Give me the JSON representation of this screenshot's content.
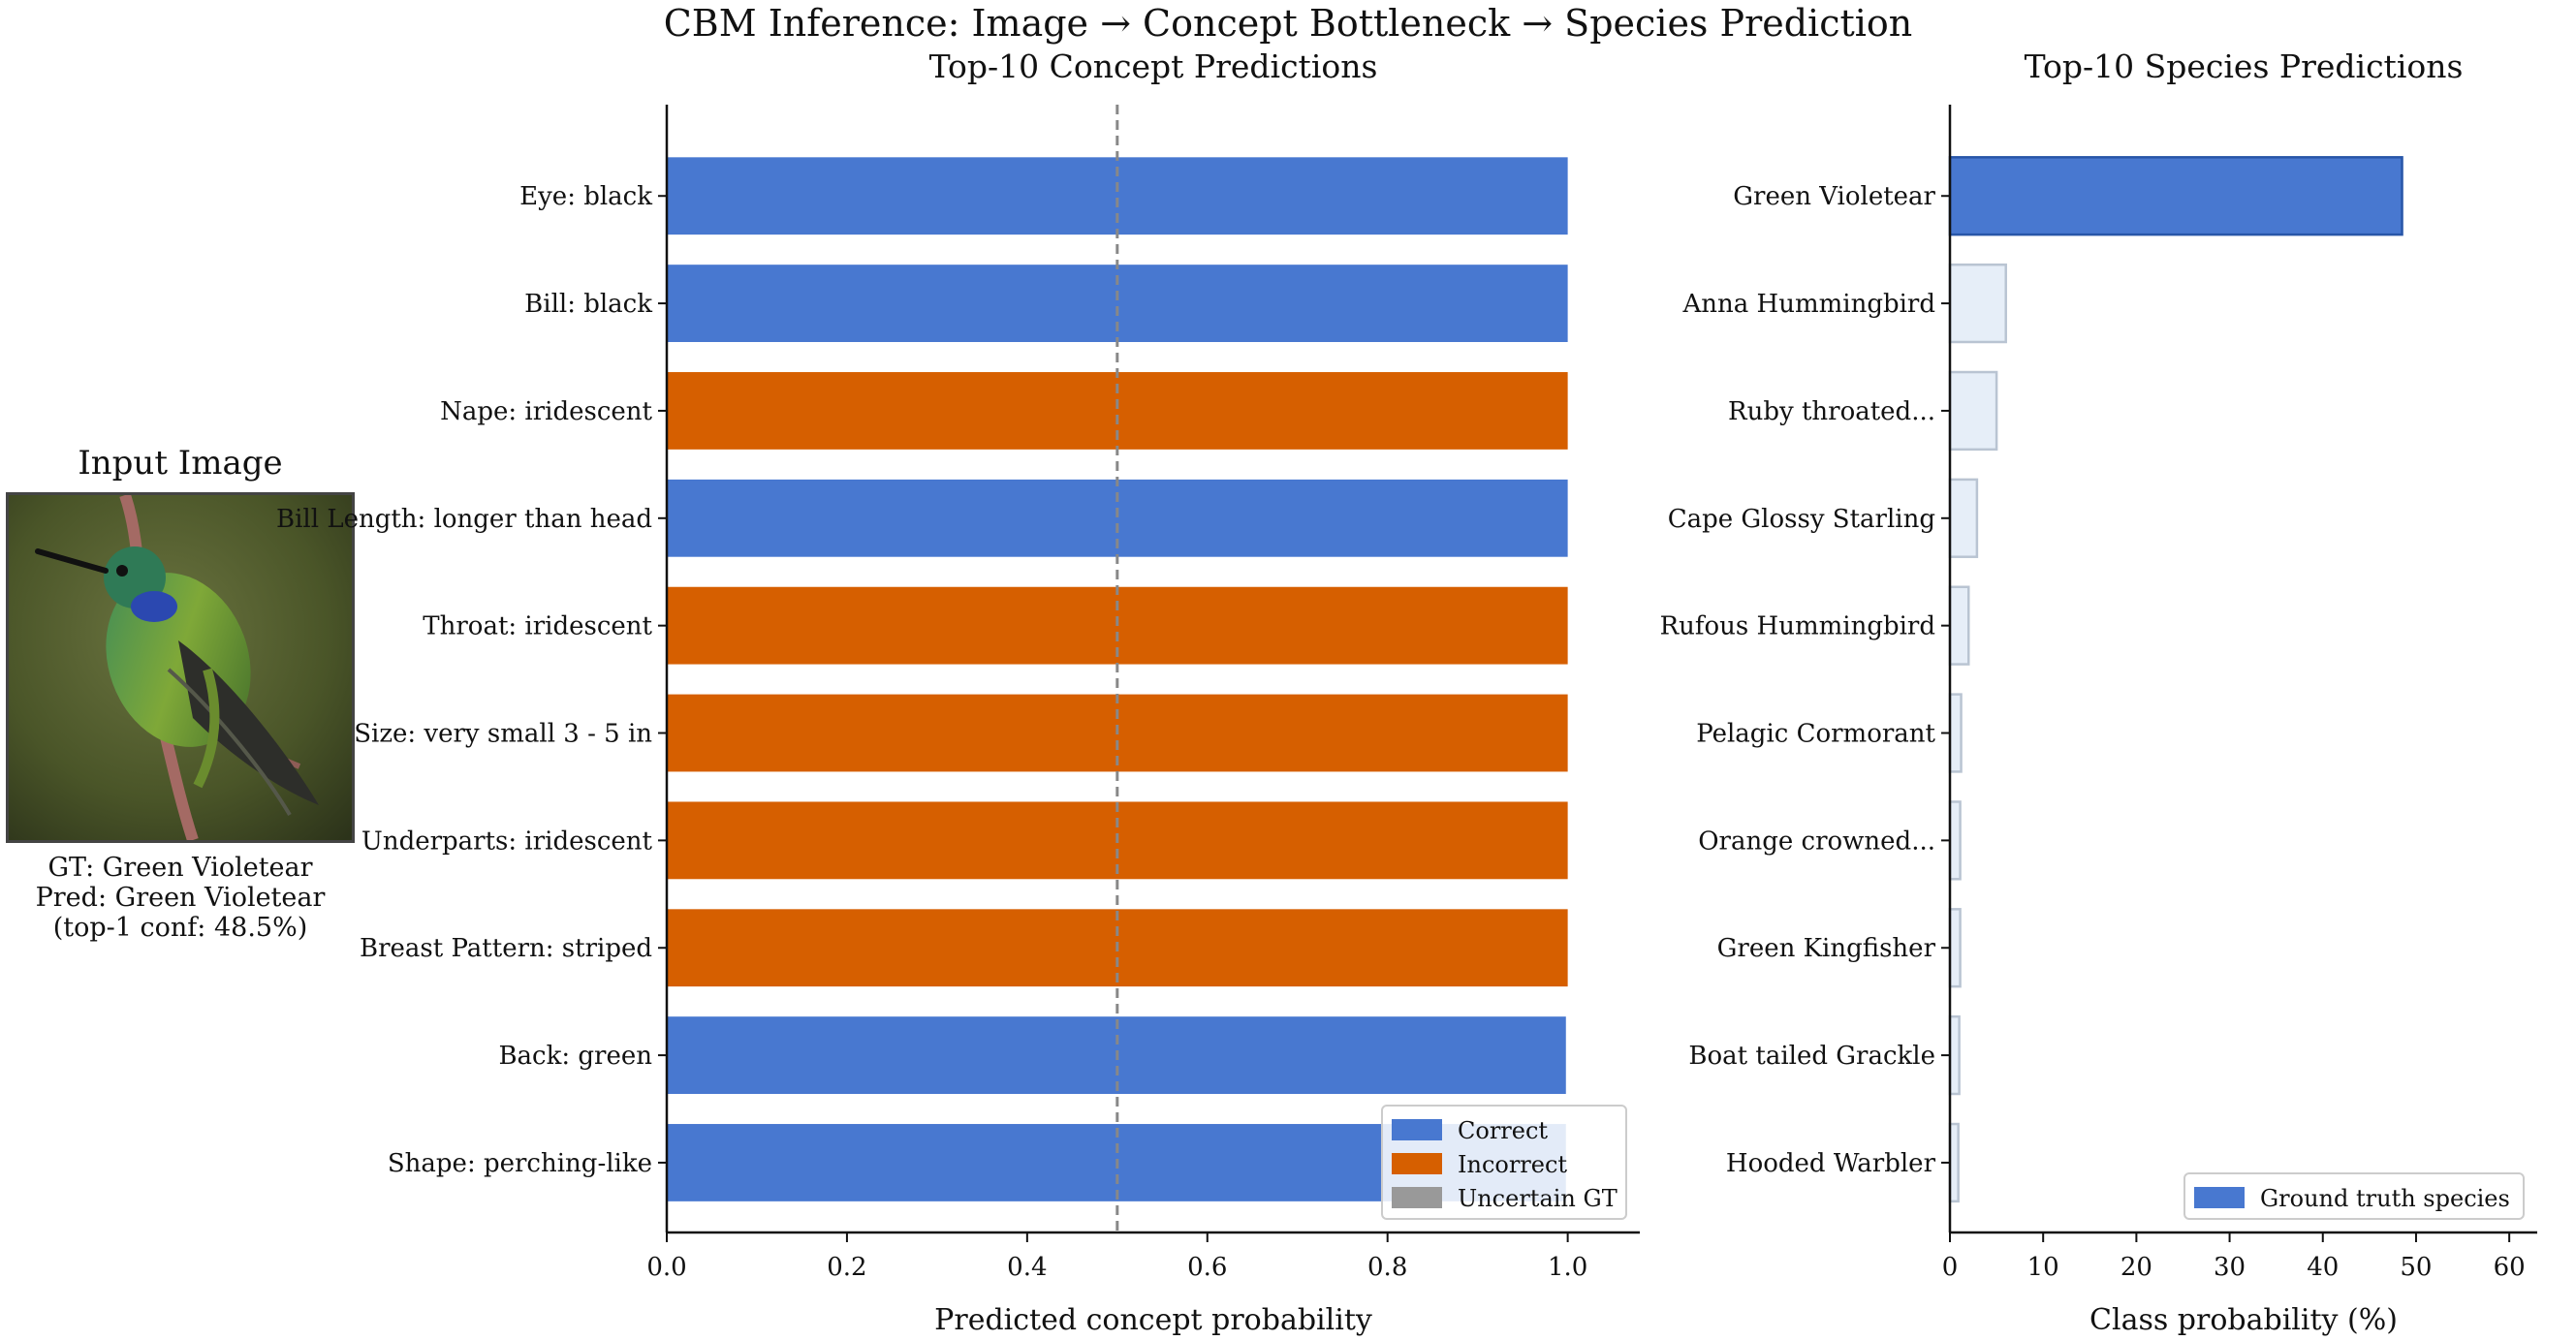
{
  "suptitle": "CBM Inference: Image → Concept Bottleneck → Species Prediction",
  "input_panel": {
    "title": "Input Image",
    "image_alt": "hummingbird-photo",
    "caption_gt": "GT: Green Violetear",
    "caption_pred": "Pred: Green Violetear",
    "caption_conf": "(top-1 conf: 48.5%)"
  },
  "colors": {
    "correct": "#4878D0",
    "incorrect": "#D65F00",
    "uncertain": "#999999",
    "species_other": "#E6EEF8",
    "species_other_edge": "#B9C4D2",
    "species_gt_edge": "#2856A8",
    "threshold": "#888888"
  },
  "chart_data": [
    {
      "type": "bar",
      "orientation": "horizontal",
      "title": "Top-10 Concept Predictions",
      "xlabel": "Predicted concept probability",
      "ylabel": "",
      "xlim": [
        0.0,
        1.08
      ],
      "xticks": [
        "0.0",
        "0.2",
        "0.4",
        "0.6",
        "0.8",
        "1.0"
      ],
      "threshold": 0.5,
      "categories": [
        "Eye: black",
        "Bill: black",
        "Nape: iridescent",
        "Bill Length: longer than head",
        "Throat: iridescent",
        "Size: very small 3 - 5 in",
        "Underparts: iridescent",
        "Breast Pattern: striped",
        "Back: green",
        "Shape: perching-like"
      ],
      "values": [
        1.0,
        1.0,
        1.0,
        1.0,
        1.0,
        1.0,
        1.0,
        1.0,
        0.998,
        0.998
      ],
      "status": [
        "correct",
        "correct",
        "incorrect",
        "correct",
        "incorrect",
        "incorrect",
        "incorrect",
        "incorrect",
        "correct",
        "correct"
      ],
      "legend": {
        "placement": "lower-right",
        "entries": [
          {
            "label": "Correct",
            "status": "correct"
          },
          {
            "label": "Incorrect",
            "status": "incorrect"
          },
          {
            "label": "Uncertain GT",
            "status": "uncertain"
          }
        ]
      },
      "grid": false
    },
    {
      "type": "bar",
      "orientation": "horizontal",
      "title": "Top-10 Species Predictions",
      "xlabel": "Class probability (%)",
      "ylabel": "",
      "xlim": [
        0,
        63
      ],
      "xticks": [
        "0",
        "10",
        "20",
        "30",
        "40",
        "50",
        "60"
      ],
      "categories": [
        "Green Violetear",
        "Anna Hummingbird",
        "Ruby throated...",
        "Cape Glossy Starling",
        "Rufous Hummingbird",
        "Pelagic Cormorant",
        "Orange crowned...",
        "Green Kingfisher",
        "Boat tailed Grackle",
        "Hooded Warbler"
      ],
      "values": [
        48.5,
        6.0,
        5.0,
        2.9,
        2.0,
        1.2,
        1.1,
        1.1,
        1.0,
        0.9
      ],
      "ground_truth_index": 0,
      "legend": {
        "placement": "lower-right",
        "entries": [
          {
            "label": "Ground truth species"
          }
        ]
      },
      "grid": false
    }
  ]
}
